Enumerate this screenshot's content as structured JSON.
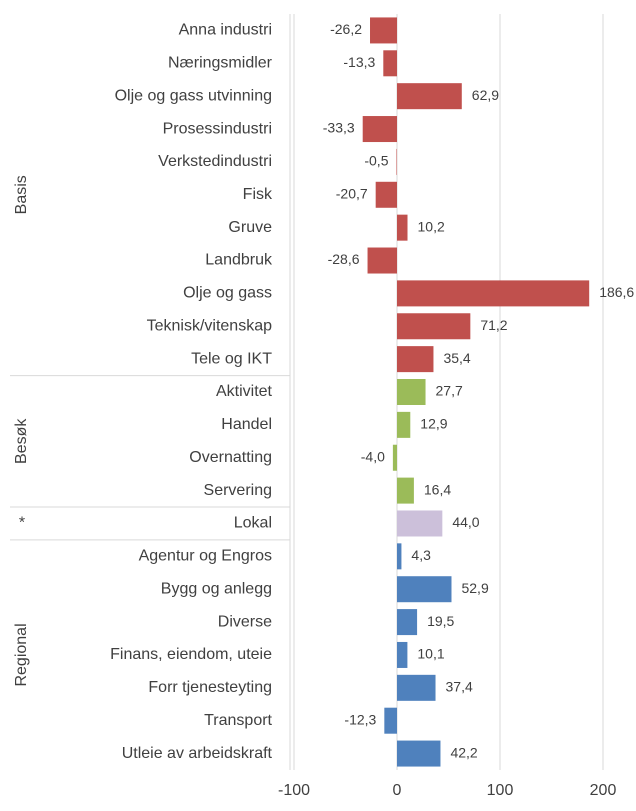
{
  "chart_data": {
    "type": "bar",
    "orientation": "horizontal",
    "series": [
      {
        "name": "Basis",
        "color": "#c0504d",
        "categories": [
          "Anna industri",
          "Næringsmidler",
          "Olje og gass utvinning",
          "Prosessindustri",
          "Verkstedindustri",
          "Fisk",
          "Gruve",
          "Landbruk",
          "Olje og gass",
          "Teknisk/vitenskap",
          "Tele og IKT"
        ],
        "values": [
          -26.2,
          -13.3,
          62.9,
          -33.3,
          -0.5,
          -20.7,
          10.2,
          -28.6,
          186.6,
          71.2,
          35.4
        ],
        "value_labels": [
          "-26,2",
          "-13,3",
          "62,9",
          "-33,3",
          "-0,5",
          "-20,7",
          "10,2",
          "-28,6",
          "186,6",
          "71,2",
          "35,4"
        ]
      },
      {
        "name": "Besøk",
        "color": "#9bbb59",
        "categories": [
          "Aktivitet",
          "Handel",
          "Overnatting",
          "Servering"
        ],
        "values": [
          27.7,
          12.9,
          -4.0,
          16.4
        ],
        "value_labels": [
          "27,7",
          "12,9",
          "-4,0",
          "16,4"
        ]
      },
      {
        "name": "*",
        "color": "#ccc0da",
        "categories": [
          "Lokal"
        ],
        "values": [
          44.0
        ],
        "value_labels": [
          "44,0"
        ]
      },
      {
        "name": "Regional",
        "color": "#4f81bd",
        "categories": [
          "Agentur og Engros",
          "Bygg og anlegg",
          "Diverse",
          "Finans, eiendom, uteie",
          "Forr tjenesteyting",
          "Transport",
          "Utleie av arbeidskraft"
        ],
        "values": [
          4.3,
          52.9,
          19.5,
          10.1,
          37.4,
          -12.3,
          42.2
        ],
        "value_labels": [
          "4,3",
          "52,9",
          "19,5",
          "10,1",
          "37,4",
          "-12,3",
          "42,2"
        ]
      }
    ],
    "xlim": [
      -100,
      200
    ],
    "xticks": [
      -100,
      0,
      100,
      200
    ],
    "grid": true
  }
}
